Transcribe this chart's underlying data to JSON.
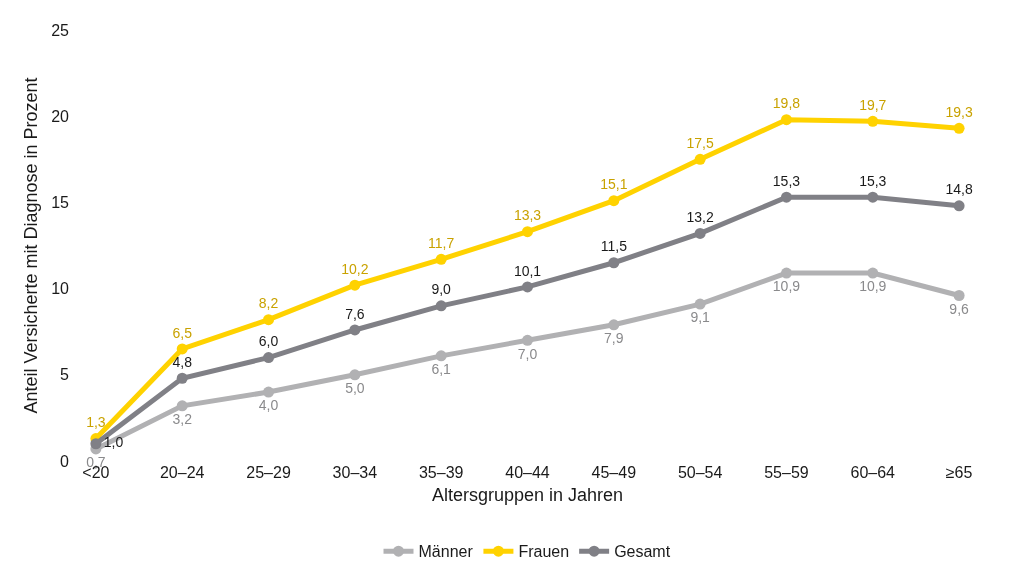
{
  "chart_data": {
    "type": "line",
    "xlabel": "Altersgruppen in Jahren",
    "ylabel": "Anteil Versicherte mit Diagnose in Prozent",
    "categories": [
      "<20",
      "20–24",
      "25–29",
      "30–34",
      "35–39",
      "40–44",
      "45–49",
      "50–54",
      "55–59",
      "60–64",
      "≥65"
    ],
    "series": [
      {
        "name": "Männer",
        "color": "#b1b1b3",
        "values": [
          0.7,
          3.2,
          4.0,
          5.0,
          6.1,
          7.0,
          7.9,
          9.1,
          10.9,
          10.9,
          9.6
        ],
        "value_labels": [
          "0,7",
          "3,2",
          "4,0",
          "5,0",
          "6,1",
          "7,0",
          "7,9",
          "9,1",
          "10,9",
          "10,9",
          "9,6"
        ]
      },
      {
        "name": "Frauen",
        "color": "#ffd200",
        "values": [
          1.3,
          6.5,
          8.2,
          10.2,
          11.7,
          13.3,
          15.1,
          17.5,
          19.8,
          19.7,
          19.3
        ],
        "value_labels": [
          "1,3",
          "6,5",
          "8,2",
          "10,2",
          "11,7",
          "13,3",
          "15,1",
          "17,5",
          "19,8",
          "19,7",
          "19,3"
        ]
      },
      {
        "name": "Gesamt",
        "color": "#808086",
        "values": [
          1.0,
          4.8,
          6.0,
          7.6,
          9.0,
          10.1,
          11.5,
          13.2,
          15.3,
          15.3,
          14.8
        ],
        "value_labels": [
          "1,0",
          "4,8",
          "6,0",
          "7,6",
          "9,0",
          "10,1",
          "11,5",
          "13,2",
          "15,3",
          "15,3",
          "14,8"
        ]
      }
    ],
    "ylim": [
      0,
      25
    ],
    "yticks": [
      0,
      5,
      10,
      15,
      20,
      25
    ],
    "legend": "bottom",
    "marker": "circle",
    "line_style": "solid"
  }
}
